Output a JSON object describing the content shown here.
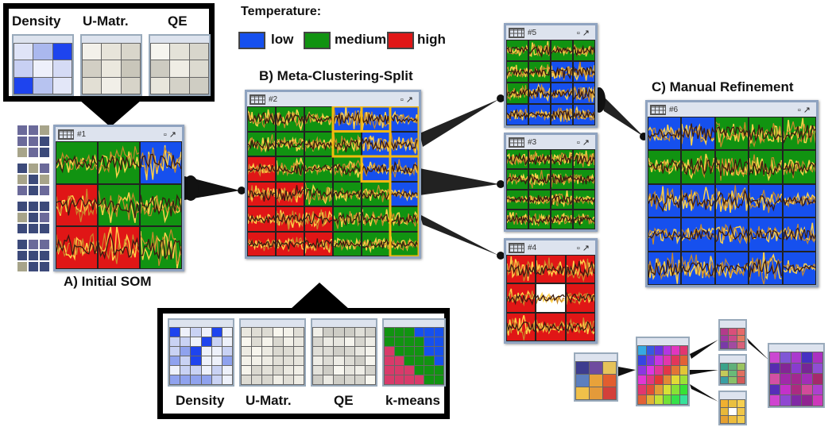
{
  "legend": {
    "title": "Temperature:",
    "items": [
      {
        "label": "low",
        "color": "#1650ee"
      },
      {
        "label": "medium",
        "color": "#119311"
      },
      {
        "label": "high",
        "color": "#e01616"
      }
    ]
  },
  "colors": {
    "low": "#1650ee",
    "medium": "#119311",
    "high": "#e01616",
    "highlight": "#f3b90f",
    "white": "#ffffff"
  },
  "labels": {
    "initial": "A) Initial SOM",
    "meta": "B) Meta-Clustering-Split",
    "manual": "C) Manual Refinement"
  },
  "callout_top": {
    "titles": [
      "Density",
      "U-Matr.",
      "QE"
    ]
  },
  "callout_bottom": {
    "titles": [
      "Density",
      "U-Matr.",
      "QE",
      "k-means"
    ]
  },
  "windows": {
    "w1": {
      "title": "#1",
      "grid": "GGB,RGG,RRG"
    },
    "w2": {
      "title": "#2",
      "grid": "GGGBBB,GGGGBB,RGGGBB,RRGGGB,RRRGGG,RRRGGG"
    },
    "w3": {
      "title": "#3",
      "grid": "GGGG,GGGG,GGGG,GGGG"
    },
    "w4": {
      "title": "#4",
      "grid": "RRR,RWR,RRR"
    },
    "w5": {
      "title": "#5",
      "grid": "GGGG,GGBB,GBBB,BBBB"
    },
    "w6": {
      "title": "#6",
      "grid": "BBGGG,GGGGG,BBBBB,BBBBB,BBBBB"
    }
  }
}
